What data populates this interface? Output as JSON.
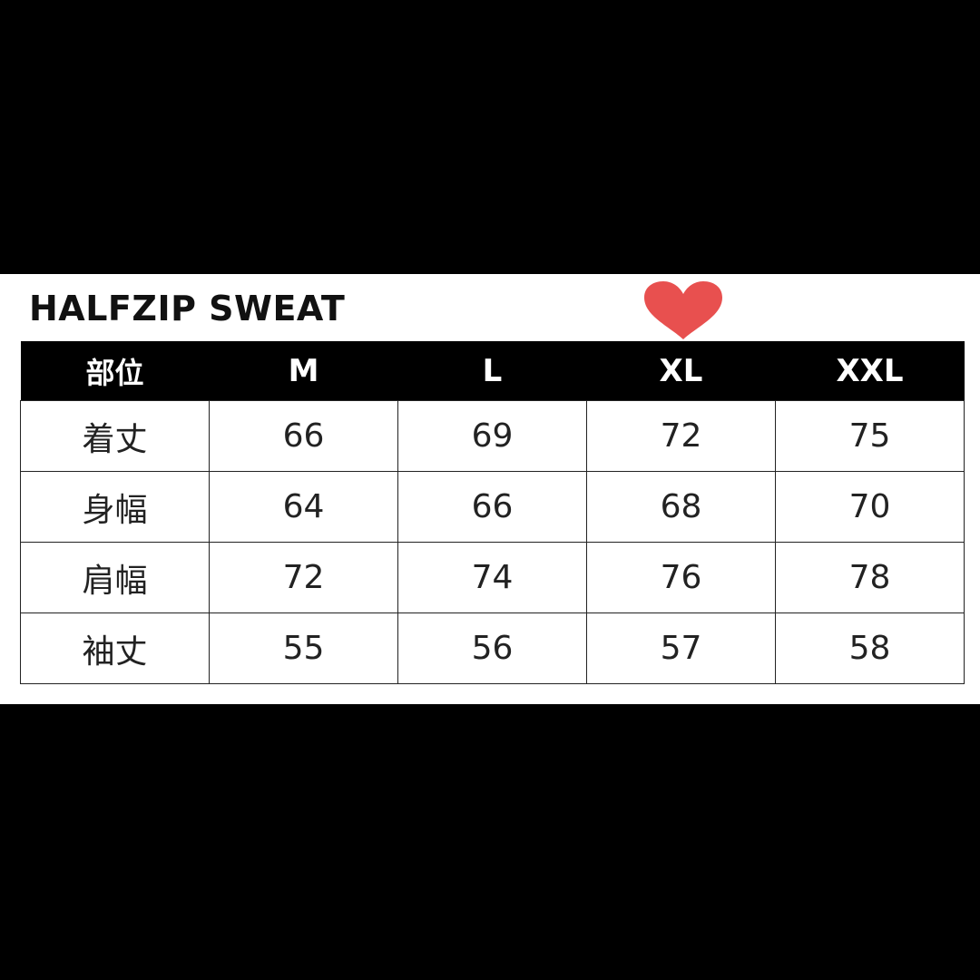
{
  "title": "HALFZIP SWEAT",
  "highlight": {
    "icon": "heart-icon",
    "column": "XL",
    "color": "#e8504f"
  },
  "table": {
    "headers": [
      "部位",
      "M",
      "L",
      "XL",
      "XXL"
    ],
    "rows": [
      [
        "着丈",
        "66",
        "69",
        "72",
        "75"
      ],
      [
        "身幅",
        "64",
        "66",
        "68",
        "70"
      ],
      [
        "肩幅",
        "72",
        "74",
        "76",
        "78"
      ],
      [
        "袖丈",
        "55",
        "56",
        "57",
        "58"
      ]
    ]
  }
}
